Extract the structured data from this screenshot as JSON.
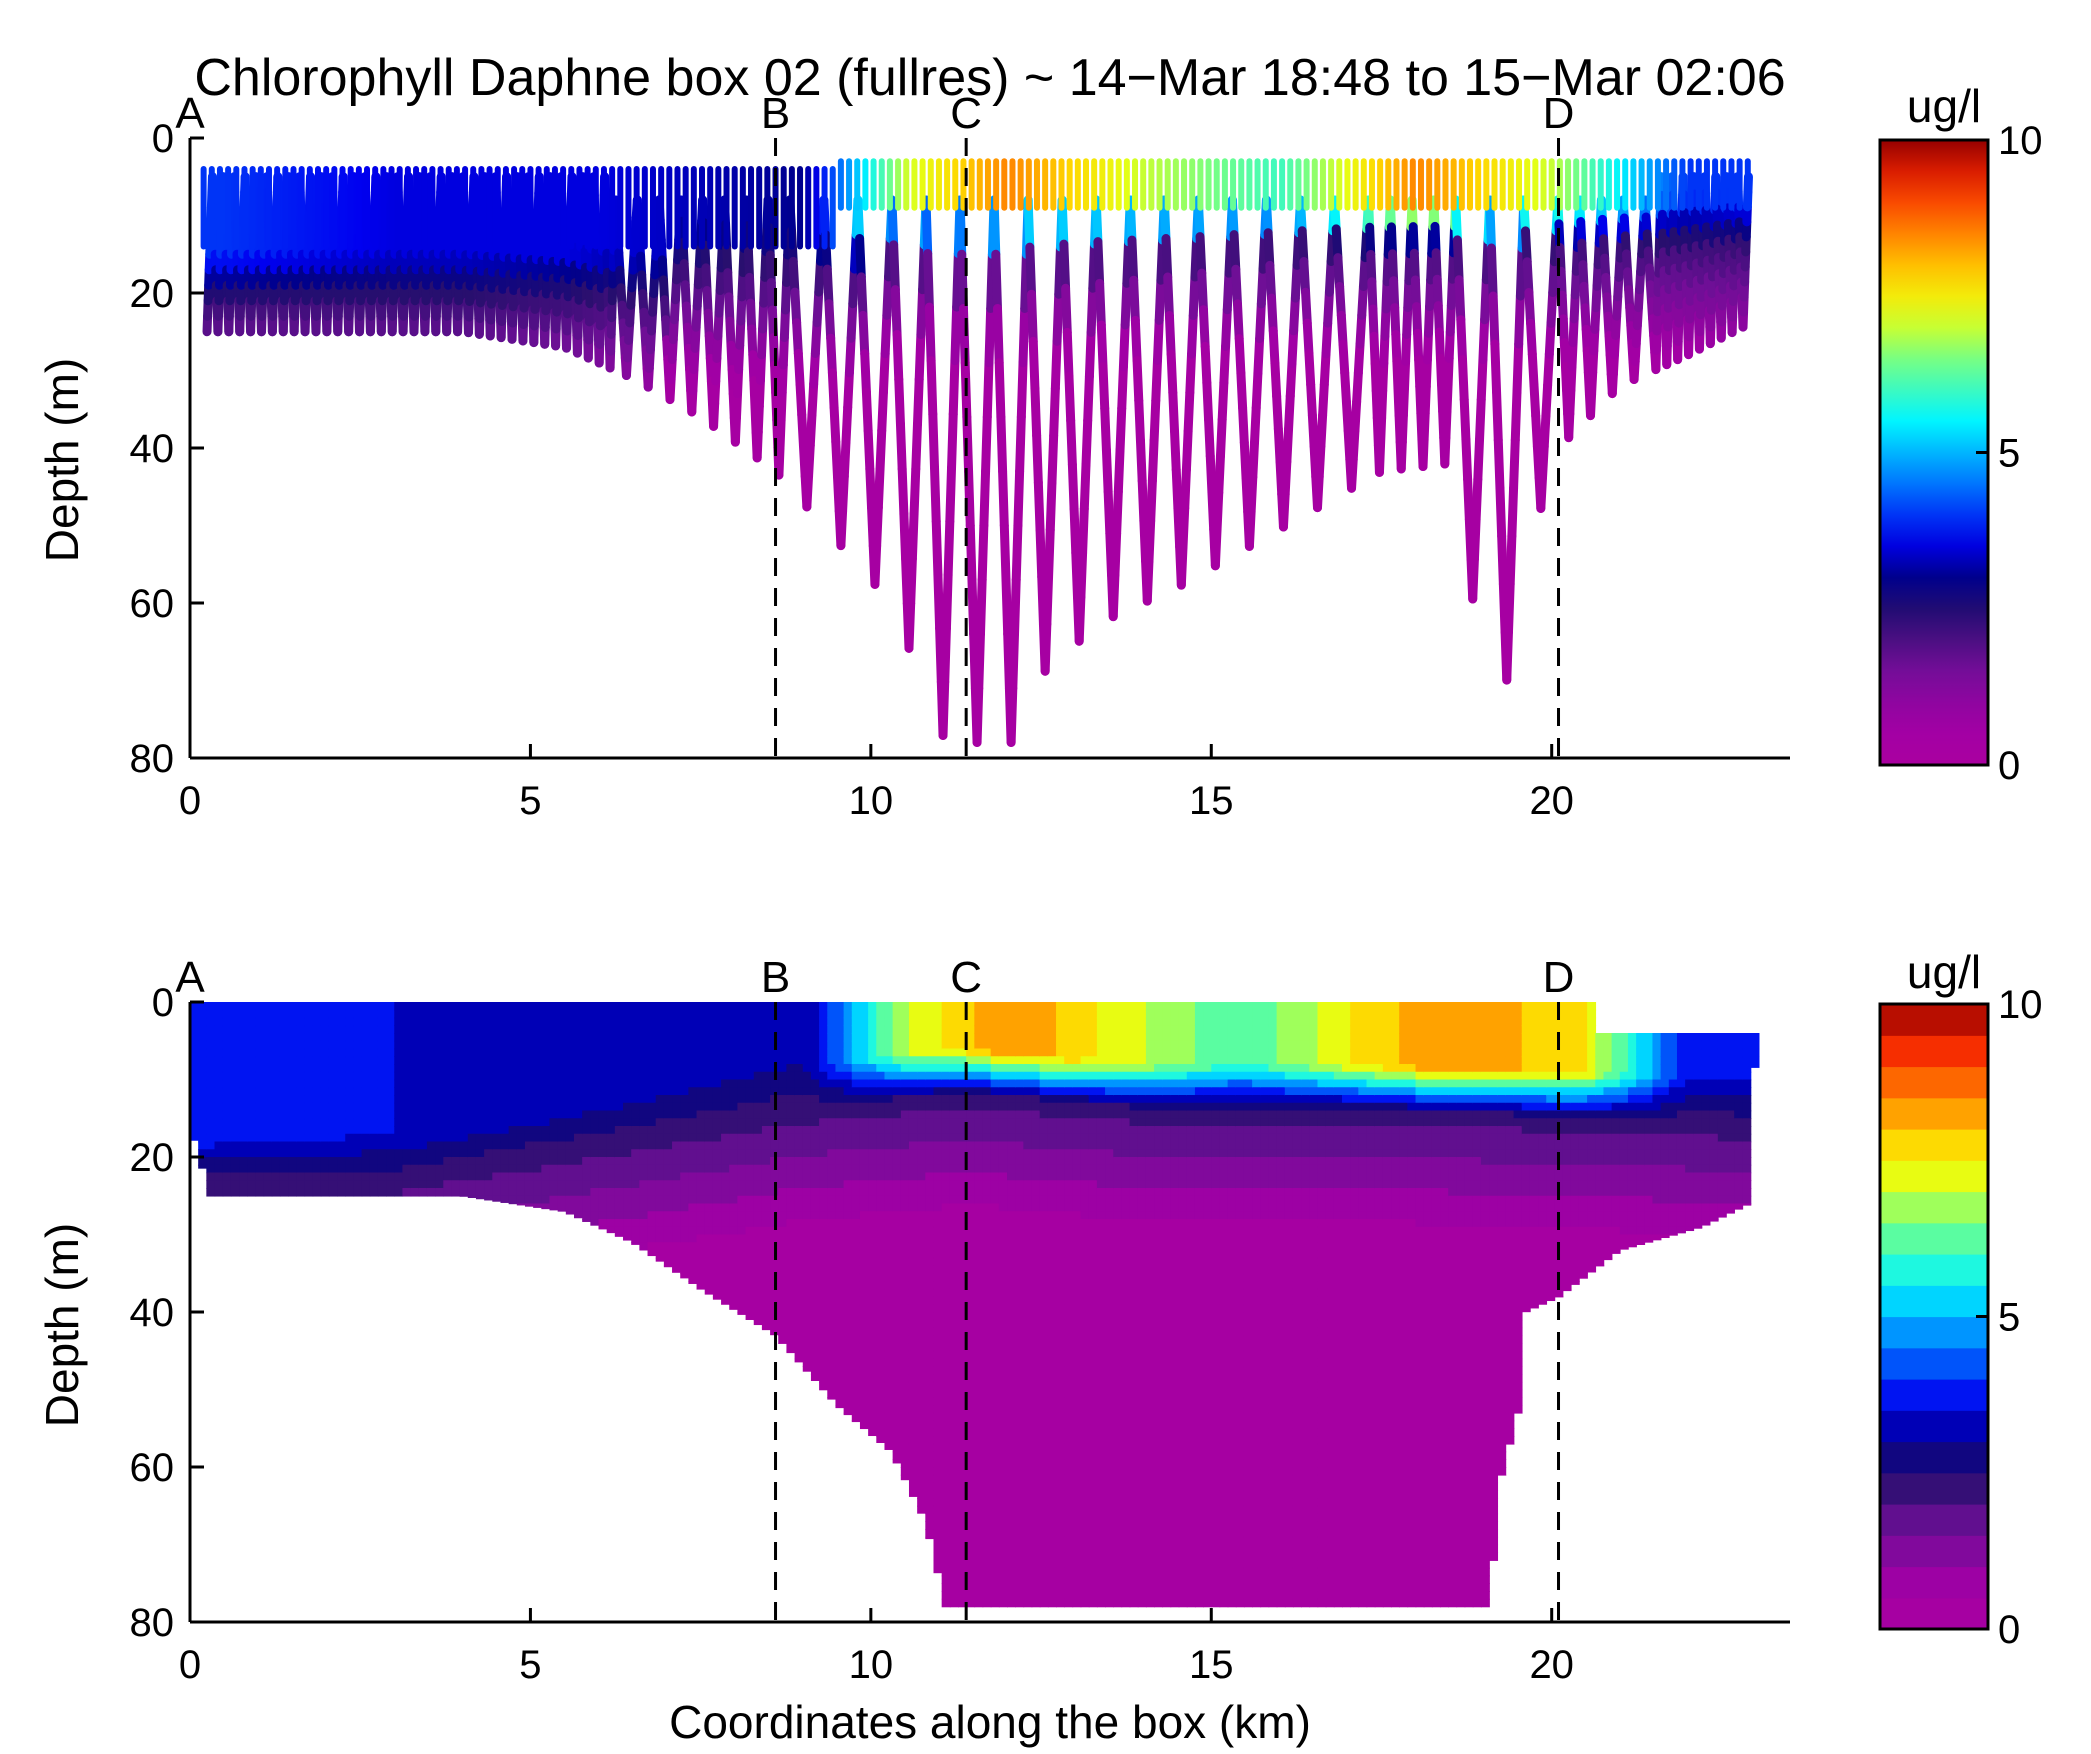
{
  "chart_data": [
    {
      "type": "scatter",
      "title": "Chlorophyll Daphne box 02 (fullres) ~ 14−Mar 18:48 to 15−Mar 02:06",
      "xlabel": "",
      "ylabel": "Depth (m)",
      "xlim": [
        0,
        23.5
      ],
      "ylim": [
        80,
        0
      ],
      "xticks": [
        "0",
        "5",
        "10",
        "15",
        "20"
      ],
      "yticks": [
        "0",
        "20",
        "40",
        "60",
        "80"
      ],
      "colorbar": {
        "label": "ug/l",
        "min": 0,
        "max": 10,
        "ticks": [
          "0",
          "5",
          "10"
        ],
        "colormap": "jet-with-magenta-low",
        "levels": "continuous"
      },
      "section_markers": [
        {
          "label": "A",
          "x": 0
        },
        {
          "label": "B",
          "x": 8.6
        },
        {
          "label": "C",
          "x": 11.4
        },
        {
          "label": "D",
          "x": 20.1
        }
      ],
      "profile_bottom_depths": [
        {
          "x": 0.3,
          "depth": 25
        },
        {
          "x": 2,
          "depth": 25
        },
        {
          "x": 4,
          "depth": 25
        },
        {
          "x": 5.5,
          "depth": 27
        },
        {
          "x": 6.5,
          "depth": 31
        },
        {
          "x": 7.5,
          "depth": 36
        },
        {
          "x": 8.6,
          "depth": 43
        },
        {
          "x": 9.5,
          "depth": 52
        },
        {
          "x": 10.3,
          "depth": 60
        },
        {
          "x": 11.1,
          "depth": 78
        },
        {
          "x": 11.6,
          "depth": 78
        },
        {
          "x": 12.1,
          "depth": 78
        },
        {
          "x": 12.6,
          "depth": 68
        },
        {
          "x": 13.5,
          "depth": 62
        },
        {
          "x": 14.5,
          "depth": 58
        },
        {
          "x": 15.5,
          "depth": 53
        },
        {
          "x": 16.5,
          "depth": 48
        },
        {
          "x": 17.5,
          "depth": 43
        },
        {
          "x": 18.5,
          "depth": 42
        },
        {
          "x": 19.2,
          "depth": 78
        },
        {
          "x": 19.6,
          "depth": 55
        },
        {
          "x": 20.1,
          "depth": 40
        },
        {
          "x": 21,
          "depth": 32
        },
        {
          "x": 22,
          "depth": 28
        },
        {
          "x": 22.9,
          "depth": 24
        }
      ],
      "surface_chlorophyll": [
        {
          "x": 0.5,
          "value": 4
        },
        {
          "x": 3,
          "value": 3.5
        },
        {
          "x": 6,
          "value": 3.5
        },
        {
          "x": 9,
          "value": 3
        },
        {
          "x": 10.5,
          "value": 7
        },
        {
          "x": 12,
          "value": 8.5
        },
        {
          "x": 14,
          "value": 7
        },
        {
          "x": 16,
          "value": 6
        },
        {
          "x": 18,
          "value": 8.5
        },
        {
          "x": 20,
          "value": 7
        },
        {
          "x": 22,
          "value": 4
        }
      ],
      "grid": false
    },
    {
      "type": "heatmap",
      "title": "",
      "xlabel": "Coordinates along the box (km)",
      "ylabel": "Depth (m)",
      "xlim": [
        0,
        23.5
      ],
      "ylim": [
        80,
        0
      ],
      "xticks": [
        "0",
        "5",
        "10",
        "15",
        "20"
      ],
      "yticks": [
        "0",
        "20",
        "40",
        "60",
        "80"
      ],
      "colorbar": {
        "label": "ug/l",
        "min": 0,
        "max": 10,
        "ticks": [
          "0",
          "5",
          "10"
        ],
        "colormap": "jet-with-magenta-low",
        "levels": 20
      },
      "section_markers": [
        {
          "label": "A",
          "x": 0
        },
        {
          "label": "B",
          "x": 8.6
        },
        {
          "label": "C",
          "x": 11.4
        },
        {
          "label": "D",
          "x": 20.1
        }
      ],
      "bottom_depths": [
        {
          "x": 0,
          "depth": 16
        },
        {
          "x": 0.3,
          "depth": 25
        },
        {
          "x": 4,
          "depth": 25
        },
        {
          "x": 5.5,
          "depth": 27
        },
        {
          "x": 6.5,
          "depth": 31
        },
        {
          "x": 7.5,
          "depth": 37
        },
        {
          "x": 8.6,
          "depth": 43
        },
        {
          "x": 9.5,
          "depth": 52
        },
        {
          "x": 10.3,
          "depth": 58
        },
        {
          "x": 10.8,
          "depth": 67
        },
        {
          "x": 11.1,
          "depth": 78
        },
        {
          "x": 19.1,
          "depth": 78
        },
        {
          "x": 19.2,
          "depth": 63
        },
        {
          "x": 19.5,
          "depth": 53
        },
        {
          "x": 19.6,
          "depth": 40
        },
        {
          "x": 20.1,
          "depth": 38
        },
        {
          "x": 21,
          "depth": 32
        },
        {
          "x": 22.2,
          "depth": 29
        },
        {
          "x": 22.9,
          "depth": 26
        },
        {
          "x": 23,
          "depth": 4
        }
      ],
      "thermocline_depths": [
        {
          "x": 0,
          "depth": 20
        },
        {
          "x": 3,
          "depth": 20
        },
        {
          "x": 7,
          "depth": 14
        },
        {
          "x": 9,
          "depth": 11
        },
        {
          "x": 11.4,
          "depth": 9
        },
        {
          "x": 14,
          "depth": 11
        },
        {
          "x": 17,
          "depth": 11
        },
        {
          "x": 20,
          "depth": 12
        },
        {
          "x": 23,
          "depth": 13
        }
      ],
      "surface_chlorophyll": [
        {
          "x": 0,
          "value": 4
        },
        {
          "x": 3,
          "value": 3.5
        },
        {
          "x": 6,
          "value": 3.3
        },
        {
          "x": 9,
          "value": 3
        },
        {
          "x": 10.5,
          "value": 7
        },
        {
          "x": 12,
          "value": 8.5
        },
        {
          "x": 14,
          "value": 7
        },
        {
          "x": 15.5,
          "value": 6
        },
        {
          "x": 17,
          "value": 7.5
        },
        {
          "x": 18.5,
          "value": 8.5
        },
        {
          "x": 20.5,
          "value": 7.5
        },
        {
          "x": 22,
          "value": 3.5
        }
      ],
      "grid": false
    }
  ]
}
